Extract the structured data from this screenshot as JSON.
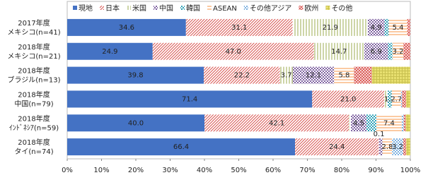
{
  "chart_data": {
    "type": "stacked_barh",
    "categories": [
      "2017年度\nメキシコ(n=41)",
      "2018年度\nメキシコ(n=21)",
      "2018年度\nブラジル(n=13)",
      "2018年度\n中国(n=79)",
      "2018年度\nｲﾝﾄﾞﾈｼｱ(n=59)",
      "2018年度\nタイ(n=74)"
    ],
    "series": [
      {
        "name": "現地",
        "color": "#4472c4",
        "pattern": "solid",
        "values": [
          34.6,
          24.9,
          39.8,
          71.4,
          40.0,
          66.4
        ],
        "value_labels": [
          "34.6",
          "24.9",
          "39.8",
          "71.4",
          "40.0",
          "66.4"
        ]
      },
      {
        "name": "日本",
        "color": "#d9534f",
        "pattern": "diag",
        "values": [
          31.1,
          47.0,
          22.2,
          21.0,
          42.1,
          24.4
        ],
        "value_labels": [
          "31.1",
          "47.0",
          "22.2",
          "21.0",
          "42.1",
          "24.4"
        ]
      },
      {
        "name": "米国",
        "color": "#9bab4f",
        "pattern": "vert",
        "values": [
          21.9,
          14.7,
          3.7,
          1.0,
          0.6,
          0.1
        ],
        "value_labels": [
          "21.9",
          "14.7",
          "3.7",
          null,
          null,
          "0.1"
        ]
      },
      {
        "name": "中国",
        "color": "#8064a2",
        "pattern": "dots",
        "values": [
          4.9,
          6.9,
          12.1,
          0,
          4.5,
          1.0
        ],
        "value_labels": [
          "4.9",
          "6.9",
          "12.1",
          null,
          "4.5",
          null
        ]
      },
      {
        "name": "韓国",
        "color": "#31a2b8",
        "pattern": "dots",
        "values": [
          1.2,
          1.3,
          0,
          1.2,
          2.9,
          0
        ],
        "value_labels": [
          null,
          null,
          null,
          "1.2",
          null,
          null
        ]
      },
      {
        "name": "ASEAN",
        "color": "#f79646",
        "pattern": "hlines",
        "values": [
          5.4,
          3.2,
          5.8,
          2.7,
          7.4,
          2.8
        ],
        "value_labels": [
          "5.4",
          "3.2",
          "5.8",
          "2.7",
          "7.4",
          "2.8"
        ]
      },
      {
        "name": "その他アジア",
        "color": "#7fb2e0",
        "pattern": "dots",
        "values": [
          0,
          0,
          0,
          0.3,
          0.6,
          3.2
        ],
        "value_labels": [
          null,
          null,
          null,
          null,
          null,
          "3.2"
        ]
      },
      {
        "name": "欧州",
        "color": "#d9534f",
        "pattern": "cross",
        "values": [
          0.9,
          2.0,
          5.2,
          1.2,
          0.6,
          0.9
        ],
        "value_labels": [
          null,
          null,
          null,
          null,
          null,
          null
        ]
      },
      {
        "name": "その他",
        "color": "#e8e070",
        "pattern": "grid",
        "values": [
          0,
          0,
          11.2,
          1.2,
          1.3,
          1.2
        ],
        "value_labels": [
          null,
          null,
          null,
          null,
          null,
          null
        ]
      }
    ],
    "xlim": [
      0,
      100
    ],
    "xticks": [
      {
        "value": 0,
        "label": "0%"
      },
      {
        "value": 10,
        "label": "10%"
      },
      {
        "value": 20,
        "label": "20%"
      },
      {
        "value": 30,
        "label": "30%"
      },
      {
        "value": 40,
        "label": "40%"
      },
      {
        "value": 50,
        "label": "50%"
      },
      {
        "value": 60,
        "label": "60%"
      },
      {
        "value": 70,
        "label": "70%"
      },
      {
        "value": 80,
        "label": "80%"
      },
      {
        "value": 90,
        "label": "90%"
      },
      {
        "value": 100,
        "label": "100%"
      }
    ]
  }
}
